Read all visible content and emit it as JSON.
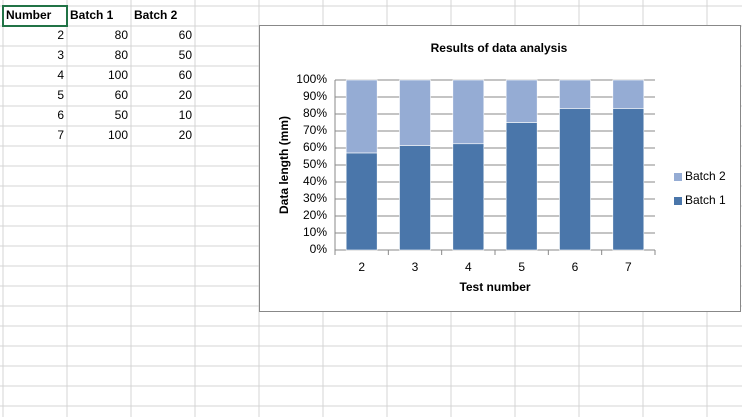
{
  "table": {
    "header": [
      "Number",
      "Batch 1",
      "Batch 2"
    ],
    "rows": [
      [
        2,
        80,
        60
      ],
      [
        3,
        80,
        50
      ],
      [
        4,
        100,
        60
      ],
      [
        5,
        60,
        20
      ],
      [
        6,
        50,
        10
      ],
      [
        7,
        100,
        20
      ]
    ]
  },
  "chart_data": {
    "type": "stacked_bar_percent",
    "title": "Results of data analysis",
    "x_label": "Test number",
    "y_label": "Data length (mm)",
    "categories": [
      "2",
      "3",
      "4",
      "5",
      "6",
      "7"
    ],
    "series": [
      {
        "name": "Batch 1",
        "color": "#4a76aa",
        "values": [
          57.1,
          61.5,
          62.5,
          75,
          83.3,
          83.3
        ]
      },
      {
        "name": "Batch 2",
        "color": "#95acd4",
        "values": [
          42.9,
          38.5,
          37.5,
          25,
          16.7,
          16.7
        ]
      }
    ],
    "ylim": [
      0,
      100
    ],
    "yticks": [
      {
        "value": 0,
        "label": "0%"
      },
      {
        "value": 10,
        "label": "10%"
      },
      {
        "value": 20,
        "label": "20%"
      },
      {
        "value": 30,
        "label": "30%"
      },
      {
        "value": 40,
        "label": "40%"
      },
      {
        "value": 50,
        "label": "50%"
      },
      {
        "value": 60,
        "label": "60%"
      },
      {
        "value": 70,
        "label": "70%"
      },
      {
        "value": 80,
        "label": "80%"
      },
      {
        "value": 90,
        "label": "90%"
      },
      {
        "value": 100,
        "label": "100%"
      }
    ],
    "grid": true,
    "legend": "right"
  }
}
